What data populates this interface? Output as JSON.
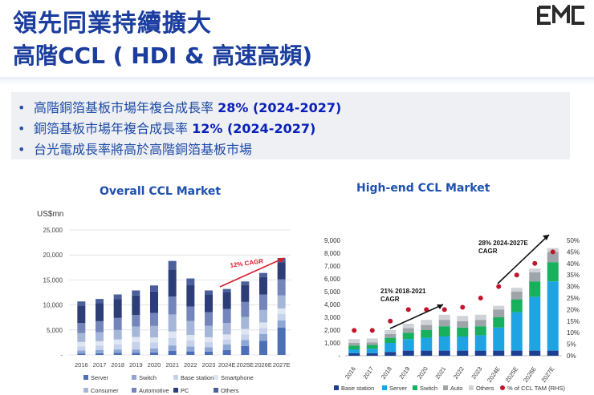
{
  "slide": {
    "title_line1": "領先同業持續擴大",
    "title_line2": "高階CCL ( HDI & 高速高頻)",
    "logo_text": "EMC",
    "brand_color": "#1a3d9e",
    "bullets": [
      {
        "text": "高階銅箔基板市場年複合成長率 ",
        "highlight": "28% (2024-2027)"
      },
      {
        "text": "銅箔基板市場年複合成長率 ",
        "highlight": "12% (2024-2027)"
      },
      {
        "text": "台光電成長率將高於高階銅箔基板市場",
        "highlight": ""
      }
    ]
  },
  "chart_data": [
    {
      "type": "bar",
      "stacked": true,
      "title": "Overall CCL Market",
      "ylabel": "US$mn",
      "ylim": [
        0,
        25000
      ],
      "yticks": [
        "-",
        "5,000",
        "10,000",
        "15,000",
        "20,000",
        "25,000"
      ],
      "categories": [
        "2016",
        "2017",
        "2018",
        "2019",
        "2020",
        "2021",
        "2022",
        "2023",
        "2024E",
        "2025E",
        "2026E",
        "2027E"
      ],
      "series": [
        {
          "name": "Server",
          "color": "#4d6fb8",
          "values": [
            300,
            350,
            400,
            400,
            500,
            800,
            700,
            650,
            1000,
            1800,
            2800,
            5500
          ]
        },
        {
          "name": "Switch",
          "color": "#8da6d4",
          "values": [
            600,
            650,
            700,
            700,
            800,
            1100,
            1000,
            900,
            1100,
            1200,
            1400,
            1400
          ]
        },
        {
          "name": "Base station",
          "color": "#c6d2eb",
          "values": [
            800,
            850,
            1000,
            1500,
            1200,
            1500,
            1200,
            1000,
            1000,
            1100,
            1200,
            1300
          ]
        },
        {
          "name": "Smartphone",
          "color": "#dfe5f1",
          "values": [
            900,
            900,
            1000,
            1000,
            1000,
            1300,
            1100,
            1000,
            1000,
            1100,
            1100,
            1100
          ]
        },
        {
          "name": "Consumer",
          "color": "#a5b6d9",
          "values": [
            1800,
            1800,
            1900,
            2100,
            2300,
            3400,
            2800,
            2300,
            2300,
            2400,
            2500,
            2600
          ]
        },
        {
          "name": "Automotive",
          "color": "#7385ba",
          "values": [
            2000,
            2200,
            2400,
            2300,
            2600,
            3600,
            2900,
            2700,
            2800,
            3000,
            3100,
            3200
          ]
        },
        {
          "name": "PC",
          "color": "#2d3d78",
          "values": [
            3500,
            3600,
            3800,
            3900,
            4300,
            5400,
            4300,
            3600,
            3300,
            3400,
            3500,
            3400
          ]
        },
        {
          "name": "Others",
          "color": "#4b5f9c",
          "values": [
            800,
            850,
            900,
            1000,
            1200,
            1700,
            1300,
            750,
            700,
            700,
            800,
            900
          ]
        }
      ],
      "annotation": "12% CAGR"
    },
    {
      "type": "bar",
      "stacked": true,
      "title": "High-end CCL Market",
      "ylim": [
        0,
        9000
      ],
      "yticks": [
        "-",
        "1,000",
        "2,000",
        "3,000",
        "4,000",
        "5,000",
        "6,000",
        "7,000",
        "8,000",
        "9,000"
      ],
      "y2lim": [
        0,
        50
      ],
      "y2ticks": [
        "0%",
        "5%",
        "10%",
        "15%",
        "20%",
        "25%",
        "30%",
        "35%",
        "40%",
        "45%",
        "50%"
      ],
      "categories": [
        "2016",
        "2017",
        "2018",
        "2019",
        "2020",
        "2021",
        "2022",
        "2023",
        "2024E",
        "2025E",
        "2026E",
        "2027E"
      ],
      "series": [
        {
          "name": "Base station",
          "color": "#1e3f8f",
          "values": [
            200,
            200,
            300,
            400,
            400,
            400,
            400,
            400,
            400,
            400,
            400,
            400
          ]
        },
        {
          "name": "Server",
          "color": "#1ea4e3",
          "values": [
            300,
            350,
            700,
            900,
            1000,
            1100,
            1100,
            1200,
            1800,
            3000,
            4200,
            5400
          ]
        },
        {
          "name": "Switch",
          "color": "#17b05d",
          "values": [
            300,
            300,
            400,
            500,
            600,
            800,
            700,
            700,
            800,
            1000,
            1200,
            1500
          ]
        },
        {
          "name": "Auto",
          "color": "#9ea4a9",
          "values": [
            200,
            200,
            300,
            350,
            400,
            500,
            500,
            500,
            600,
            600,
            700,
            800
          ]
        },
        {
          "name": "Others",
          "color": "#cfd3d7",
          "values": [
            300,
            300,
            300,
            350,
            400,
            400,
            400,
            400,
            300,
            300,
            300,
            300
          ]
        }
      ],
      "line_series": {
        "name": "% of CCL TAM (RHS)",
        "color": "#c0152a",
        "values": [
          11,
          11,
          15,
          20,
          20,
          20,
          21,
          25,
          30,
          35,
          40,
          45
        ]
      },
      "annotations": [
        "21% 2018-2021\nCAGR",
        "28% 2024-2027E\nCAGR"
      ]
    }
  ]
}
